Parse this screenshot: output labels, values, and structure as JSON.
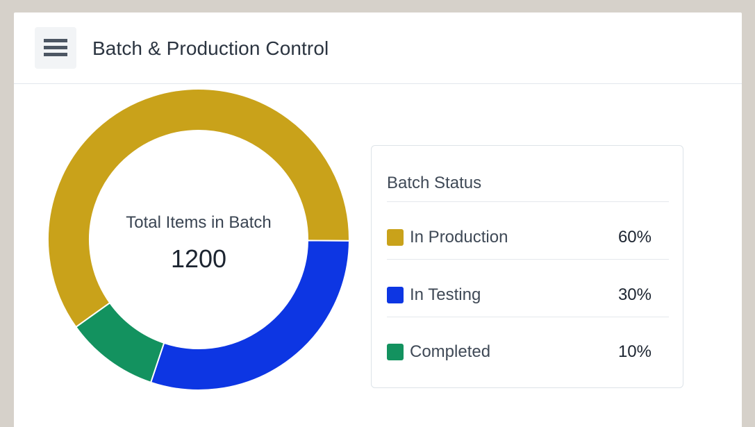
{
  "header": {
    "title": "Batch & Production Control",
    "menu_icon": "hamburger-menu-icon"
  },
  "chart_data": {
    "type": "pie",
    "center_label": "Total Items in Batch",
    "center_value": "1200",
    "categories": [
      "In Production",
      "In Testing",
      "Completed"
    ],
    "values": [
      60,
      30,
      10
    ],
    "colors": [
      "#c9a21a",
      "#0d36e3",
      "#13925f"
    ]
  },
  "legend": {
    "title": "Batch Status",
    "items": [
      {
        "label": "In Production",
        "value": "60%",
        "color": "#c9a21a"
      },
      {
        "label": "In Testing",
        "value": "30%",
        "color": "#0d36e3"
      },
      {
        "label": "Completed",
        "value": "10%",
        "color": "#13925f"
      }
    ]
  }
}
